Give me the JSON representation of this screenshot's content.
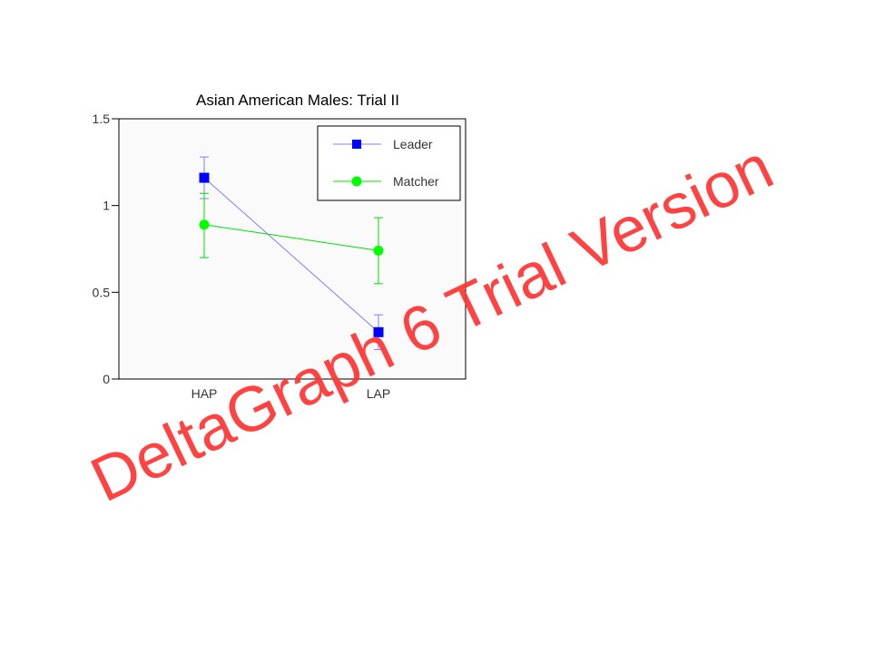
{
  "chart_data": {
    "type": "line",
    "title": "Asian American Males: Trial II",
    "xlabel": "",
    "ylabel": "",
    "categories": [
      "HAP",
      "LAP"
    ],
    "ylim": [
      0,
      1.5
    ],
    "yticks": [
      0,
      0.5,
      1,
      1.5
    ],
    "ytick_labels": [
      "0",
      "0.5",
      "1",
      "1.5"
    ],
    "grid": false,
    "legend_position": "top-right",
    "series": [
      {
        "name": "Leader",
        "color": "#0000ff",
        "line_color": "#8080ff",
        "marker": "square",
        "values": [
          1.16,
          0.27
        ],
        "error_low": [
          1.04,
          0.17
        ],
        "error_high": [
          1.28,
          0.37
        ]
      },
      {
        "name": "Matcher",
        "color": "#00ff00",
        "line_color": "#00e000",
        "marker": "circle",
        "values": [
          0.89,
          0.74
        ],
        "error_low": [
          0.7,
          0.55
        ],
        "error_high": [
          1.07,
          0.93
        ]
      }
    ]
  },
  "watermark": {
    "text": "DeltaGraph 6 Trial Version",
    "color": "#ff3333"
  }
}
